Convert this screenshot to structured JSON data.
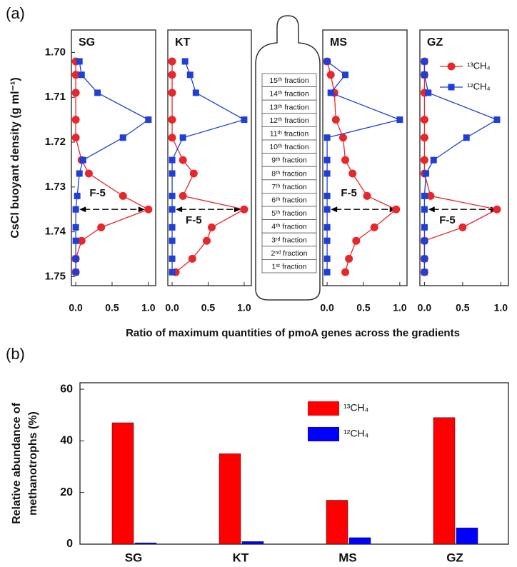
{
  "panel_labels": [
    "(a)",
    "(b)"
  ],
  "shared_xlabel": "Ratio of maximum quantities of pmoA genes across the gradients",
  "tube": {
    "fractions": [
      "15ᵗʰ fraction",
      "14ᵗʰ fraction",
      "13ᵗʰ fraction",
      "12ᵗʰ fraction",
      "11ᵗʰ fraction",
      "10ᵗʰ fraction",
      "9ᵗʰ fraction",
      "8ᵗʰ fraction",
      "7ᵗʰ fraction",
      "6ᵗʰ fraction",
      "5ᵗʰ fraction",
      "4ᵗʰ fraction",
      "3ʳᵈ fraction",
      "2ⁿᵈ fraction",
      "1ˢᵗ fraction"
    ]
  },
  "chart_data": [
    {
      "type": "vline",
      "title": "SG",
      "annotation": "F-5",
      "ylabel": "CsCl buoyant density (g ml⁻¹)",
      "y": [
        1.702,
        1.705,
        1.709,
        1.715,
        1.719,
        1.724,
        1.727,
        1.732,
        1.735,
        1.739,
        1.742,
        1.746,
        1.749
      ],
      "series": [
        {
          "color": "#e8262b",
          "marker": "circle",
          "values": [
            0,
            0,
            0,
            0,
            0,
            0.08,
            0.18,
            0.65,
            1.0,
            0.35,
            0.08,
            0,
            0
          ]
        },
        {
          "color": "#1f3fd6",
          "marker": "square",
          "values": [
            0.05,
            0.08,
            0.3,
            1.0,
            0.65,
            0.1,
            0.05,
            0.02,
            0,
            0,
            0,
            0,
            0
          ]
        }
      ],
      "xlim": [
        -0.06,
        1.1
      ],
      "xticks": [
        {
          "value": 0,
          "label": "0.0"
        },
        0.5,
        {
          "value": 1,
          "label": "1.0"
        }
      ],
      "ylim": [
        1.695,
        1.752
      ],
      "y_inverted": true,
      "yticks": [
        {
          "value": 1.7,
          "label": "1.70"
        },
        1.71,
        1.72,
        1.73,
        1.74,
        1.75
      ]
    },
    {
      "type": "vline",
      "title": "KT",
      "annotation": "F-5",
      "y": [
        1.702,
        1.705,
        1.709,
        1.715,
        1.719,
        1.724,
        1.727,
        1.732,
        1.735,
        1.739,
        1.742,
        1.746,
        1.749
      ],
      "series": [
        {
          "color": "#e8262b",
          "marker": "circle",
          "values": [
            0,
            0,
            0,
            0,
            0,
            0.15,
            0.3,
            0.15,
            1.0,
            0.55,
            0.48,
            0.28,
            0.05
          ]
        },
        {
          "color": "#1f3fd6",
          "marker": "square",
          "values": [
            0.18,
            0.25,
            0.33,
            1.0,
            0.15,
            0,
            0,
            0,
            0,
            0,
            0,
            0,
            0
          ]
        }
      ],
      "xlim": [
        -0.06,
        1.1
      ],
      "xticks": [
        {
          "value": 0,
          "label": "0.0"
        },
        0.5,
        {
          "value": 1,
          "label": "1.0"
        }
      ],
      "ylim": [
        1.695,
        1.752
      ],
      "y_inverted": true
    },
    {
      "type": "vline",
      "title": "MS",
      "annotation": "F-5",
      "y": [
        1.702,
        1.705,
        1.709,
        1.715,
        1.719,
        1.724,
        1.727,
        1.732,
        1.735,
        1.739,
        1.742,
        1.746,
        1.749
      ],
      "series": [
        {
          "color": "#e8262b",
          "marker": "circle",
          "values": [
            0,
            0.05,
            0.1,
            0.12,
            0.22,
            0.25,
            0.35,
            0.55,
            0.95,
            0.65,
            0.4,
            0.3,
            0.25
          ]
        },
        {
          "color": "#1f3fd6",
          "marker": "square",
          "values": [
            0,
            0.25,
            0.05,
            1.0,
            0,
            0,
            0,
            0,
            0,
            0,
            0,
            0,
            0
          ]
        }
      ],
      "xlim": [
        -0.06,
        1.1
      ],
      "xticks": [
        {
          "value": 0,
          "label": "0.0"
        },
        0.5,
        {
          "value": 1,
          "label": "1.0"
        }
      ],
      "ylim": [
        1.695,
        1.752
      ],
      "y_inverted": true
    },
    {
      "type": "vline",
      "title": "GZ",
      "annotation": "F-5",
      "legend": "upper right",
      "y": [
        1.702,
        1.705,
        1.709,
        1.715,
        1.719,
        1.724,
        1.727,
        1.732,
        1.735,
        1.739,
        1.742,
        1.746,
        1.749
      ],
      "series": [
        {
          "name": "¹³CH₄",
          "color": "#e8262b",
          "marker": "circle",
          "values": [
            0,
            0,
            0,
            0,
            0,
            0,
            0,
            0.08,
            0.95,
            0.5,
            0,
            0,
            0
          ]
        },
        {
          "name": "¹²CH₄",
          "color": "#1f3fd6",
          "marker": "square",
          "values": [
            0,
            0,
            0.05,
            0.95,
            0.55,
            0.12,
            0.02,
            0,
            0,
            0,
            0,
            0,
            0
          ]
        }
      ],
      "xlim": [
        -0.06,
        1.1
      ],
      "xticks": [
        {
          "value": 0,
          "label": "0.0"
        },
        0.5,
        {
          "value": 1,
          "label": "1.0"
        }
      ],
      "ylim": [
        1.695,
        1.752
      ],
      "y_inverted": true
    },
    {
      "type": "bar",
      "ylabel": [
        "Relative abundance of",
        "methanotrophs (%)"
      ],
      "categories": [
        "SG",
        "KT",
        "MS",
        "GZ"
      ],
      "series": [
        {
          "name": "¹³CH₄",
          "color": "#ff0000",
          "values": [
            47,
            35,
            17,
            49
          ]
        },
        {
          "name": "¹²CH₄",
          "color": "#0000ff",
          "values": [
            0.5,
            1.0,
            2.5,
            6.3
          ]
        }
      ],
      "ylim": [
        0,
        62.5
      ],
      "yticks": [
        0,
        20,
        40,
        60
      ]
    }
  ]
}
